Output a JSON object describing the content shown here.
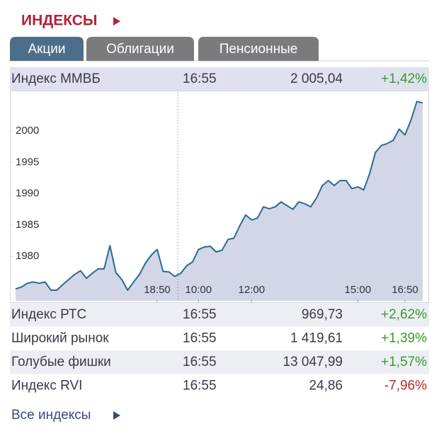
{
  "header": {
    "title": "ИНДЕКСЫ"
  },
  "tabs": [
    {
      "label": "Акции",
      "active": true
    },
    {
      "label": "Облигации",
      "active": false
    },
    {
      "label": "Пенсионные",
      "active": false
    }
  ],
  "main_row": {
    "name": "Индекс ММВБ",
    "time": "16:55",
    "value": "2 005,04",
    "change": "+1,42%",
    "color": "#3a9a2a"
  },
  "chart_data": {
    "type": "line",
    "color": "#2a6a98",
    "fill": "#d3d6e6",
    "values": [
      1974.8,
      1975.1,
      1975.7,
      1975.9,
      1975.7,
      1975.9,
      1974.6,
      1974.6,
      1975.5,
      1976.3,
      1977.1,
      1977.7,
      1976.5,
      1977.3,
      1978.0,
      1978.0,
      1981.7,
      1977.4,
      1976.3,
      1974.6,
      1975.9,
      1977.1,
      1978.9,
      1980.2,
      1981.1,
      1977.6,
      1977.5,
      1976.8,
      1977.3,
      1978.5,
      1979.1,
      1981.1,
      1981.5,
      1981.6,
      1980.7,
      1981.0,
      1982.7,
      1982.9,
      1984.9,
      1986.6,
      1985.8,
      1986.1,
      1987.9,
      1987.6,
      1987.9,
      1988.7,
      1988.1,
      1987.5,
      1988.7,
      1988.4,
      1987.9,
      1989.3,
      1991.3,
      1992.1,
      1991.3,
      1992.1,
      1992.1,
      1990.8,
      1991.1,
      1990.6,
      1993.2,
      1996.6,
      1997.7,
      1998.0,
      1998.5,
      2000.3,
      1999.4,
      2001.7,
      2004.7,
      2004.5
    ],
    "xlim": [
      0,
      69
    ],
    "xticks": [
      {
        "value": 24,
        "label": "18:50"
      },
      {
        "value": 31,
        "label": "10:00"
      },
      {
        "value": 40,
        "label": "12:00"
      },
      {
        "value": 58,
        "label": "15:00"
      },
      {
        "value": 66,
        "label": "16:50"
      }
    ],
    "ylim": [
      1972.9,
      2005.1
    ],
    "yticks": [
      1980,
      1985,
      1990,
      1995,
      2000
    ],
    "grid": false
  },
  "rows": [
    {
      "name": "Индекс РТС",
      "time": "16:55",
      "value": "969,73",
      "change": "+2,62%",
      "color": "#3a9a2a"
    },
    {
      "name": "Широкий рынок",
      "time": "16:55",
      "value": "1 419,61",
      "change": "+1,39%",
      "color": "#3a9a2a"
    },
    {
      "name": "Голубые фишки",
      "time": "16:55",
      "value": "13 047,99",
      "change": "+1,57%",
      "color": "#3a9a2a"
    },
    {
      "name": "Индекс RVI",
      "time": "16:55",
      "value": "24,86",
      "change": "-7,96%",
      "color": "#c0282a"
    }
  ],
  "footer": {
    "link": "Все индексы"
  }
}
